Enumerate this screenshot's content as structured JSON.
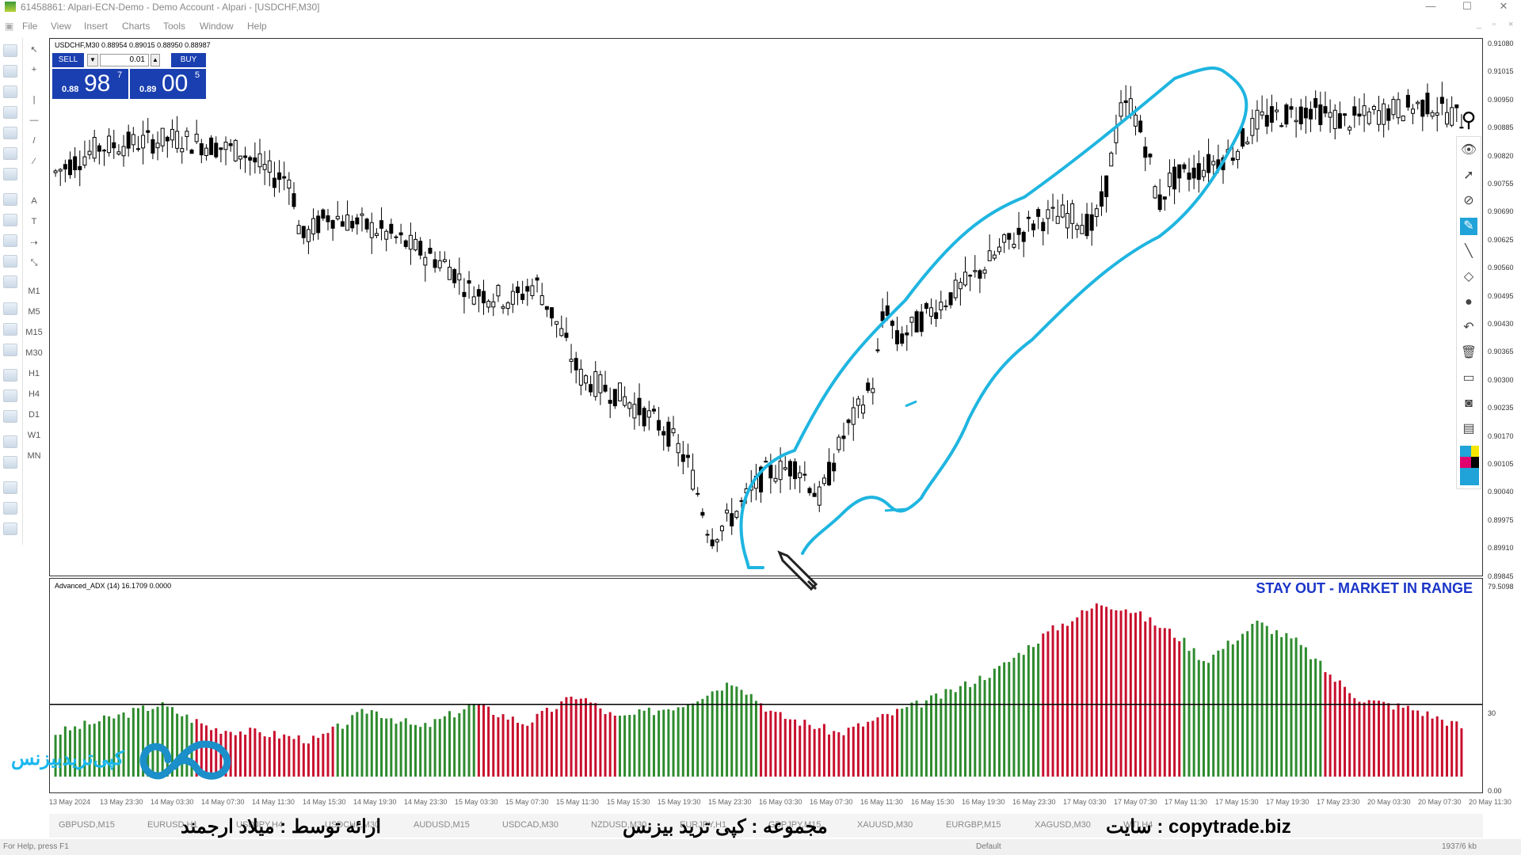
{
  "window": {
    "title": "61458861: Alpari-ECN-Demo - Demo Account - Alpari - [USDCHF,M30]",
    "minimize": "—",
    "maximize": "☐",
    "close": "✕"
  },
  "menu": [
    "File",
    "View",
    "Insert",
    "Charts",
    "Tools",
    "Window",
    "Help"
  ],
  "mdi_controls": [
    "_",
    "▫",
    "×"
  ],
  "timeframes": [
    "M1",
    "M5",
    "M15",
    "M30",
    "H1",
    "H4",
    "D1",
    "W1",
    "MN"
  ],
  "draw_tools": [
    "↖",
    "+",
    "|",
    "—",
    "/",
    "⁄",
    "A",
    "T",
    "⇢",
    "⤡"
  ],
  "chart": {
    "symbol_line": "USDCHF,M30  0.88954 0.89015 0.88950 0.88987",
    "trade_panel": {
      "sell_label": "SELL",
      "buy_label": "BUY",
      "lot": "0.01",
      "sell_price_small": "0.88",
      "sell_price_big": "98",
      "sell_price_sup": "7",
      "buy_price_small": "0.89",
      "buy_price_big": "00",
      "buy_price_sup": "5"
    },
    "price_axis": [
      "0.91080",
      "0.91015",
      "0.90950",
      "0.90885",
      "0.90820",
      "0.90755",
      "0.90690",
      "0.90625",
      "0.90560",
      "0.90495",
      "0.90430",
      "0.90365",
      "0.90300",
      "0.90235",
      "0.90170",
      "0.90105",
      "0.90040",
      "0.89975",
      "0.89910",
      "0.89845"
    ]
  },
  "indicator": {
    "label": "Advanced_ADX (14) 16.1709 0.0000",
    "signal": "STAY OUT - MARKET IN RANGE",
    "axis_top": "79.5098",
    "level_label": "30",
    "axis_bottom": "0.00",
    "level": 30,
    "colors": {
      "above": "#2e8b2e",
      "below": "#c8102e"
    }
  },
  "time_axis": [
    "13 May 2024",
    "13 May 23:30",
    "14 May 03:30",
    "14 May 07:30",
    "14 May 11:30",
    "14 May 15:30",
    "14 May 19:30",
    "14 May 23:30",
    "15 May 03:30",
    "15 May 07:30",
    "15 May 11:30",
    "15 May 15:30",
    "15 May 19:30",
    "15 May 23:30",
    "16 May 03:30",
    "16 May 07:30",
    "16 May 11:30",
    "16 May 15:30",
    "16 May 19:30",
    "16 May 23:30",
    "17 May 03:30",
    "17 May 07:30",
    "17 May 11:30",
    "17 May 15:30",
    "17 May 19:30",
    "17 May 23:30",
    "20 May 03:30",
    "20 May 07:30",
    "20 May 11:30"
  ],
  "symbol_tabs": [
    "GBPUSD,M15",
    "EURUSD,H1",
    "USDJPY,H4",
    "USDCHF,M30",
    "AUDUSD,M15",
    "USDCAD,M30",
    "NZDUSD,M30",
    "EURJPY,H1",
    "GBPJPY,M15",
    "XAUUSD,M30",
    "EURGBP,M15",
    "XAGUSD,M30",
    "WTI,H4"
  ],
  "captions": {
    "left": "ارائه توسط : میلاد ارجمند",
    "middle": "مجموعه : کپی ترید بیزنس",
    "right": "سایت : copytrade.biz",
    "logo_text": "کپی‌تریدبیزنس"
  },
  "status": {
    "help": "For Help, press F1",
    "profile": "Default",
    "traffic": "1937/6 kb"
  },
  "drawing_panel": [
    "eye-icon",
    "pointer-icon",
    "compass-icon",
    "marker-icon",
    "pen-icon",
    "eraser-icon",
    "dot-icon",
    "undo-icon",
    "trash-icon",
    "screen-icon",
    "camera-icon",
    "notes-icon"
  ]
}
